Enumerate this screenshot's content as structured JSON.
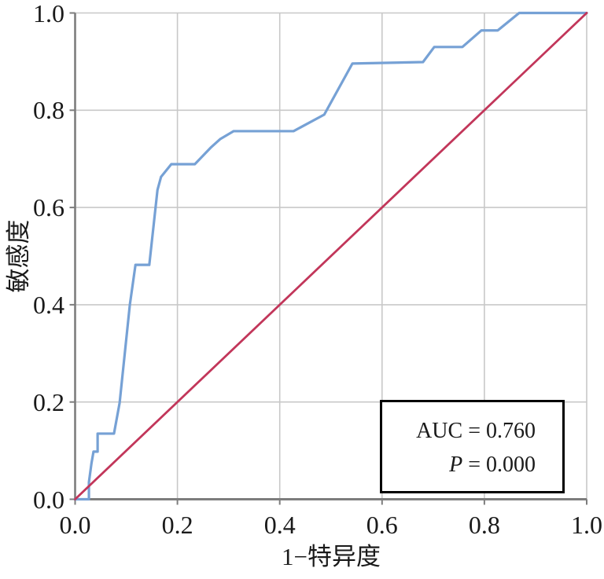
{
  "chart_data": {
    "type": "line",
    "title": "",
    "xlabel": "1−特异度",
    "ylabel": "敏感度",
    "xlim": [
      0,
      1
    ],
    "ylim": [
      0,
      1
    ],
    "grid": true,
    "legend": "none",
    "x_ticks": {
      "values": [
        0.0,
        0.2,
        0.4,
        0.6,
        0.8,
        1.0
      ],
      "labels": [
        "0.0",
        "0.2",
        "0.4",
        "0.6",
        "0.8",
        "1.0"
      ]
    },
    "y_ticks": {
      "values": [
        0.0,
        0.2,
        0.4,
        0.6,
        0.8,
        1.0
      ],
      "labels": [
        "0.0",
        "0.2",
        "0.4",
        "0.6",
        "0.8",
        "1.0"
      ]
    },
    "series": [
      {
        "name": "roc-curve",
        "color": "#76A1D5",
        "stroke_width": 3.2,
        "points": [
          [
            0.0,
            0.0
          ],
          [
            0.027,
            0.0
          ],
          [
            0.027,
            0.035
          ],
          [
            0.032,
            0.074
          ],
          [
            0.036,
            0.098
          ],
          [
            0.044,
            0.098
          ],
          [
            0.044,
            0.135
          ],
          [
            0.076,
            0.135
          ],
          [
            0.087,
            0.198
          ],
          [
            0.107,
            0.4
          ],
          [
            0.118,
            0.482
          ],
          [
            0.145,
            0.482
          ],
          [
            0.161,
            0.636
          ],
          [
            0.168,
            0.663
          ],
          [
            0.188,
            0.689
          ],
          [
            0.234,
            0.689
          ],
          [
            0.265,
            0.723
          ],
          [
            0.284,
            0.741
          ],
          [
            0.31,
            0.757
          ],
          [
            0.427,
            0.757
          ],
          [
            0.487,
            0.791
          ],
          [
            0.542,
            0.896
          ],
          [
            0.68,
            0.899
          ],
          [
            0.702,
            0.93
          ],
          [
            0.757,
            0.93
          ],
          [
            0.794,
            0.964
          ],
          [
            0.826,
            0.964
          ],
          [
            0.868,
            1.0
          ],
          [
            1.0,
            1.0
          ]
        ]
      },
      {
        "name": "reference-diagonal",
        "color": "#C2365A",
        "stroke_width": 2.8,
        "points": [
          [
            0.0,
            0.0
          ],
          [
            1.0,
            1.0
          ]
        ]
      }
    ],
    "annotation": {
      "lines": [
        {
          "segments": [
            {
              "text": "AUC",
              "italic": false
            },
            {
              "text": " = 0.760",
              "italic": false
            }
          ]
        },
        {
          "segments": [
            {
              "text": "P",
              "italic": true
            },
            {
              "text": " = 0.000",
              "italic": false
            }
          ]
        }
      ]
    },
    "colors": {
      "grid": "#c8c8c8",
      "axis": "#7d7d7d",
      "tick_mark": "#7d7d7d",
      "text": "#1a1a1a",
      "annotation_border": "#000000",
      "background": "#ffffff"
    }
  }
}
